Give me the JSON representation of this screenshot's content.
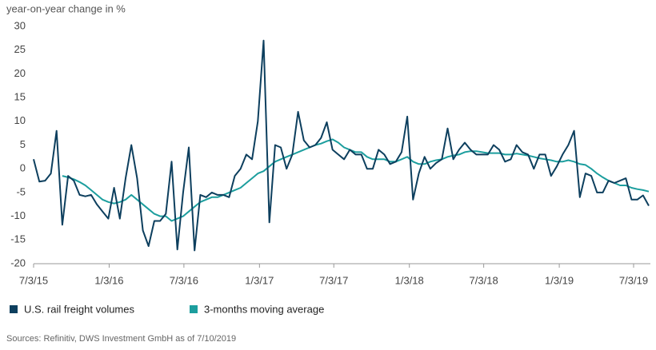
{
  "chart_data": {
    "type": "line",
    "y_label": "year-on-year change in %",
    "source": "Sources: Refinitiv, DWS Investment GmbH as of 7/10/2019",
    "x": [
      "2015-07-03",
      "2015-07-17",
      "2015-07-31",
      "2015-08-14",
      "2015-08-28",
      "2015-09-11",
      "2015-09-25",
      "2015-10-09",
      "2015-10-23",
      "2015-11-06",
      "2015-11-20",
      "2015-12-04",
      "2015-12-18",
      "2016-01-01",
      "2016-01-15",
      "2016-01-29",
      "2016-02-12",
      "2016-02-26",
      "2016-03-11",
      "2016-03-25",
      "2016-04-08",
      "2016-04-22",
      "2016-05-06",
      "2016-05-20",
      "2016-06-03",
      "2016-06-17",
      "2016-07-01",
      "2016-07-15",
      "2016-07-29",
      "2016-08-12",
      "2016-08-26",
      "2016-09-09",
      "2016-09-23",
      "2016-10-07",
      "2016-10-21",
      "2016-11-04",
      "2016-11-18",
      "2016-12-02",
      "2016-12-16",
      "2016-12-30",
      "2017-01-13",
      "2017-01-27",
      "2017-02-10",
      "2017-02-24",
      "2017-03-10",
      "2017-03-24",
      "2017-04-07",
      "2017-04-21",
      "2017-05-05",
      "2017-05-19",
      "2017-06-02",
      "2017-06-16",
      "2017-06-30",
      "2017-07-14",
      "2017-07-28",
      "2017-08-11",
      "2017-08-25",
      "2017-09-08",
      "2017-09-22",
      "2017-10-06",
      "2017-10-20",
      "2017-11-03",
      "2017-11-17",
      "2017-12-01",
      "2017-12-15",
      "2017-12-29",
      "2018-01-12",
      "2018-01-26",
      "2018-02-09",
      "2018-02-23",
      "2018-03-09",
      "2018-03-23",
      "2018-04-06",
      "2018-04-20",
      "2018-05-04",
      "2018-05-18",
      "2018-06-01",
      "2018-06-15",
      "2018-06-29",
      "2018-07-13",
      "2018-07-27",
      "2018-08-10",
      "2018-08-24",
      "2018-09-07",
      "2018-09-21",
      "2018-10-05",
      "2018-10-19",
      "2018-11-02",
      "2018-11-16",
      "2018-11-30",
      "2018-12-14",
      "2018-12-28",
      "2019-01-11",
      "2019-01-25",
      "2019-02-08",
      "2019-02-22",
      "2019-03-08",
      "2019-03-22",
      "2019-04-05",
      "2019-04-19",
      "2019-05-03",
      "2019-05-17",
      "2019-05-31",
      "2019-06-14",
      "2019-06-28",
      "2019-07-12",
      "2019-07-26",
      "2019-08-09"
    ],
    "series": [
      {
        "name": "U.S. rail freight volumes",
        "color": "#0d3f5e",
        "values": [
          2,
          -2.7,
          -2.5,
          -1,
          8,
          -11.8,
          -1.5,
          -2.5,
          -5.5,
          -5.8,
          -5.5,
          -7.5,
          -9,
          -10.5,
          -4,
          -10.5,
          -2,
          5,
          -2,
          -13,
          -16.3,
          -11,
          -11,
          -9.5,
          1.5,
          -17,
          -5,
          4.5,
          -17.2,
          -5.5,
          -6,
          -5,
          -5.5,
          -5.5,
          -6,
          -1.5,
          0,
          3,
          2,
          10,
          27,
          -11.3,
          5,
          4.5,
          0,
          3,
          12,
          6,
          4.5,
          5,
          6.5,
          9.8,
          4,
          3,
          2,
          4,
          3,
          3,
          0,
          0,
          4,
          3,
          1,
          1.5,
          3.5,
          11,
          -6.5,
          -1,
          2.5,
          0,
          1.2,
          2,
          8.5,
          2,
          4,
          5.5,
          4,
          3,
          3,
          3,
          5,
          4,
          1.5,
          2,
          5,
          3.5,
          3,
          0,
          3,
          3,
          -1.5,
          0.5,
          3,
          5,
          8,
          -6,
          -1,
          -1.5,
          -5,
          -5,
          -2.5,
          -3,
          -2.5,
          -2,
          -6.5,
          -6.5,
          -5.6,
          -7.8
        ]
      },
      {
        "name": "3-months moving average",
        "color": "#1c9e9e",
        "values": [
          null,
          null,
          null,
          null,
          null,
          -1.5,
          -1.8,
          -2.2,
          -2.8,
          -3.5,
          -4.5,
          -5.5,
          -6.5,
          -7,
          -7.3,
          -7,
          -6.5,
          -5.5,
          -6.5,
          -7.5,
          -8.5,
          -9.5,
          -10,
          -10,
          -11,
          -10.5,
          -10,
          -9,
          -8,
          -7,
          -6.5,
          -6,
          -6,
          -5.5,
          -5,
          -4.5,
          -4,
          -3,
          -2,
          -1,
          -0.5,
          0.5,
          1.5,
          2,
          2.5,
          3,
          3.5,
          4,
          4.5,
          5,
          5.3,
          5.8,
          6.2,
          5.5,
          4.5,
          4,
          3.5,
          3.5,
          2.5,
          2,
          2,
          2,
          1.5,
          1.5,
          2,
          2.5,
          1.5,
          1,
          1,
          1.5,
          1.8,
          2,
          2.5,
          2.8,
          3,
          3.5,
          3.7,
          3.7,
          3.5,
          3.3,
          3.3,
          3.3,
          3,
          3,
          3.2,
          3,
          2.8,
          2.5,
          2.2,
          2,
          1.8,
          1.5,
          1.5,
          1.8,
          1.5,
          1,
          0.8,
          0,
          -1,
          -1.8,
          -2.5,
          -3,
          -3.5,
          -3.5,
          -4,
          -4.3,
          -4.5,
          -4.8
        ]
      }
    ],
    "xlim": [
      "2015-07-03",
      "2019-08-09"
    ],
    "xticks": [
      {
        "value": "2015-07-03",
        "label": "7/3/15"
      },
      {
        "value": "2016-01-03",
        "label": "1/3/16"
      },
      {
        "value": "2016-07-03",
        "label": "7/3/16"
      },
      {
        "value": "2017-01-03",
        "label": "1/3/17"
      },
      {
        "value": "2017-07-03",
        "label": "7/3/17"
      },
      {
        "value": "2018-01-03",
        "label": "1/3/18"
      },
      {
        "value": "2018-07-03",
        "label": "7/3/18"
      },
      {
        "value": "2019-01-03",
        "label": "1/3/19"
      },
      {
        "value": "2019-07-03",
        "label": "7/3/19"
      }
    ],
    "ylim": [
      -20,
      30
    ],
    "yticks": [
      30,
      25,
      20,
      15,
      10,
      5,
      0,
      -5,
      -10,
      -15,
      -20
    ],
    "grid": false,
    "legend": "bottom-left"
  }
}
